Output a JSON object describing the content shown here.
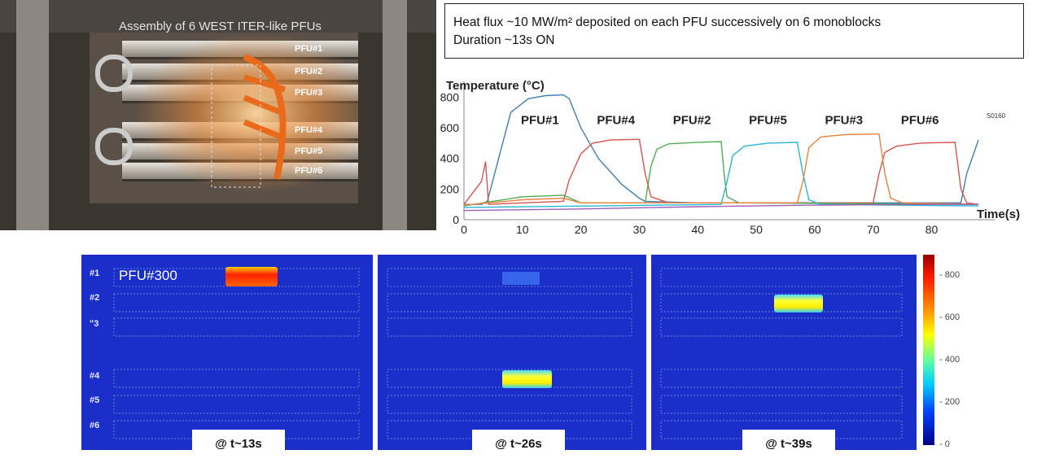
{
  "caption": {
    "line1": "Heat flux ~10 MW/m² deposited on each PFU successively on 6 monoblocks",
    "line2": "Duration ~13s ON"
  },
  "photo": {
    "title": "Assembly of 6 WEST ITER-like PFUs",
    "labels": [
      "PFU#1",
      "PFU#2",
      "PFU#3",
      "PFU#4",
      "PFU#5",
      "PFU#6"
    ]
  },
  "chart_data": {
    "type": "line",
    "ylabel": "Temperature (°C)",
    "xlabel": "Time(s)",
    "xlim": [
      0,
      88
    ],
    "ylim": [
      0,
      850
    ],
    "xticks": [
      0,
      10,
      20,
      30,
      40,
      50,
      60,
      70,
      80
    ],
    "yticks": [
      0,
      200,
      400,
      600,
      800
    ],
    "side_label": "S0160",
    "annotations": [
      {
        "text": "PFU#1",
        "x": 13,
        "y": 650
      },
      {
        "text": "PFU#4",
        "x": 26,
        "y": 650
      },
      {
        "text": "PFU#2",
        "x": 39,
        "y": 650
      },
      {
        "text": "PFU#5",
        "x": 52,
        "y": 650
      },
      {
        "text": "PFU#3",
        "x": 65,
        "y": 650
      },
      {
        "text": "PFU#6",
        "x": 78,
        "y": 650
      }
    ],
    "series": [
      {
        "color": "#3f7fb5",
        "values": [
          [
            0,
            100
          ],
          [
            3,
            100
          ],
          [
            4,
            120
          ],
          [
            8,
            700
          ],
          [
            11,
            790
          ],
          [
            14,
            810
          ],
          [
            17,
            815
          ],
          [
            18,
            790
          ],
          [
            20,
            600
          ],
          [
            23,
            400
          ],
          [
            27,
            230
          ],
          [
            30,
            140
          ],
          [
            31,
            120
          ],
          [
            40,
            110
          ],
          [
            60,
            110
          ],
          [
            80,
            110
          ],
          [
            85,
            110
          ],
          [
            86,
            300
          ],
          [
            88,
            520
          ]
        ]
      },
      {
        "color": "#d9534f",
        "values": [
          [
            0,
            100
          ],
          [
            3,
            250
          ],
          [
            3.7,
            380
          ],
          [
            4.2,
            100
          ],
          [
            10,
            110
          ],
          [
            17,
            120
          ],
          [
            18,
            260
          ],
          [
            20,
            430
          ],
          [
            22,
            500
          ],
          [
            25,
            520
          ],
          [
            30,
            525
          ],
          [
            31,
            300
          ],
          [
            32,
            150
          ],
          [
            35,
            110
          ],
          [
            55,
            110
          ],
          [
            70,
            110
          ],
          [
            71,
            300
          ],
          [
            72,
            440
          ],
          [
            74,
            480
          ],
          [
            78,
            500
          ],
          [
            84,
            505
          ],
          [
            85,
            200
          ],
          [
            86,
            110
          ],
          [
            88,
            100
          ]
        ]
      },
      {
        "color": "#4caf50",
        "values": [
          [
            0,
            90
          ],
          [
            10,
            150
          ],
          [
            17,
            160
          ],
          [
            20,
            110
          ],
          [
            31,
            110
          ],
          [
            32,
            350
          ],
          [
            33,
            460
          ],
          [
            35,
            495
          ],
          [
            40,
            505
          ],
          [
            44,
            510
          ],
          [
            44.5,
            300
          ],
          [
            45,
            150
          ],
          [
            47,
            110
          ],
          [
            88,
            100
          ]
        ]
      },
      {
        "color": "#26b7d4",
        "values": [
          [
            0,
            80
          ],
          [
            44,
            100
          ],
          [
            45,
            250
          ],
          [
            46,
            420
          ],
          [
            48,
            480
          ],
          [
            52,
            500
          ],
          [
            57,
            505
          ],
          [
            58,
            300
          ],
          [
            59,
            130
          ],
          [
            61,
            100
          ],
          [
            88,
            90
          ]
        ]
      },
      {
        "color": "#e8823a",
        "values": [
          [
            0,
            95
          ],
          [
            10,
            130
          ],
          [
            17,
            140
          ],
          [
            20,
            110
          ],
          [
            57,
            110
          ],
          [
            58,
            250
          ],
          [
            59,
            470
          ],
          [
            61,
            540
          ],
          [
            65,
            555
          ],
          [
            71,
            560
          ],
          [
            72,
            300
          ],
          [
            73,
            140
          ],
          [
            75,
            110
          ],
          [
            88,
            100
          ]
        ]
      },
      {
        "color": "#9c5fb5",
        "values": [
          [
            0,
            60
          ],
          [
            20,
            70
          ],
          [
            40,
            85
          ],
          [
            60,
            95
          ],
          [
            80,
            100
          ],
          [
            88,
            100
          ]
        ]
      }
    ]
  },
  "heatmap": {
    "row_labels": [
      "#1",
      "#2",
      "\"3",
      "#4",
      "#5",
      "#6"
    ],
    "panel1_label": "PFU#300",
    "snapshots": [
      "@ t~13s",
      "@ t~26s",
      "@ t~39s"
    ],
    "colorbar_ticks": [
      800,
      600,
      400,
      200,
      0
    ]
  }
}
